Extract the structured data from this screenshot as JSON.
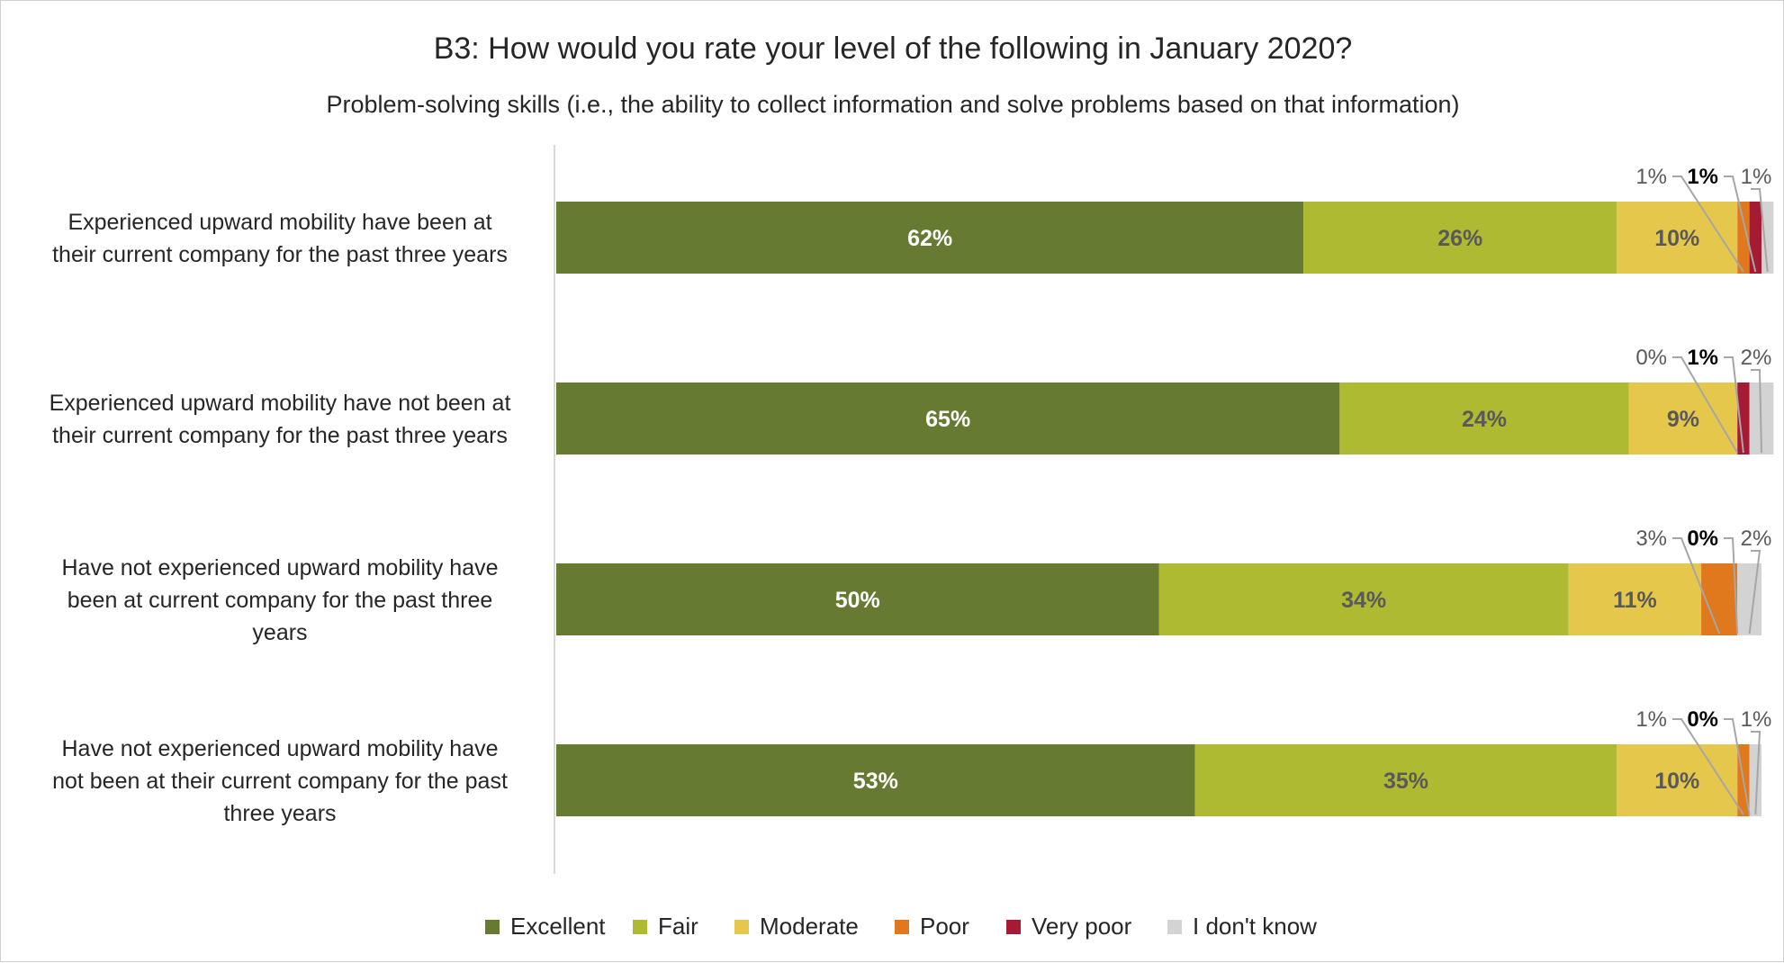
{
  "chart_data": {
    "type": "bar",
    "orientation": "horizontal",
    "stacked": true,
    "title": "B3: How would you rate your level of the following in January 2020?",
    "subtitle": "Problem-solving skills (i.e., the ability to collect information and solve problems based on that information)",
    "categories": [
      "Experienced upward mobility have been at their current company for the past three years",
      "Experienced upward mobility have not been at their current company for the past three years",
      "Have not experienced upward mobility have been at current company for the past three years",
      "Have not experienced upward mobility have not been at their current company for the past three years"
    ],
    "series": [
      {
        "name": "Excellent",
        "color": "#667a31",
        "values": [
          62,
          65,
          50,
          53
        ]
      },
      {
        "name": "Fair",
        "color": "#afba33",
        "values": [
          26,
          24,
          34,
          35
        ]
      },
      {
        "name": "Moderate",
        "color": "#e5c84b",
        "values": [
          10,
          9,
          11,
          10
        ]
      },
      {
        "name": "Poor",
        "color": "#e0781d",
        "values": [
          1,
          0,
          3,
          1
        ]
      },
      {
        "name": "Very poor",
        "color": "#a61b34",
        "values": [
          1,
          1,
          0,
          0
        ]
      },
      {
        "name": "I don't know",
        "color": "#d3d3d3",
        "values": [
          1,
          2,
          2,
          1
        ]
      }
    ],
    "value_labels": [
      [
        "62%",
        "26%",
        "10%",
        "1%",
        "1%",
        "1%"
      ],
      [
        "65%",
        "24%",
        "9%",
        "0%",
        "1%",
        "2%"
      ],
      [
        "50%",
        "34%",
        "11%",
        "3%",
        "0%",
        "2%"
      ],
      [
        "53%",
        "35%",
        "10%",
        "1%",
        "0%",
        "1%"
      ]
    ],
    "xlim": [
      0,
      100
    ],
    "grid": false,
    "legend_position": "bottom"
  }
}
